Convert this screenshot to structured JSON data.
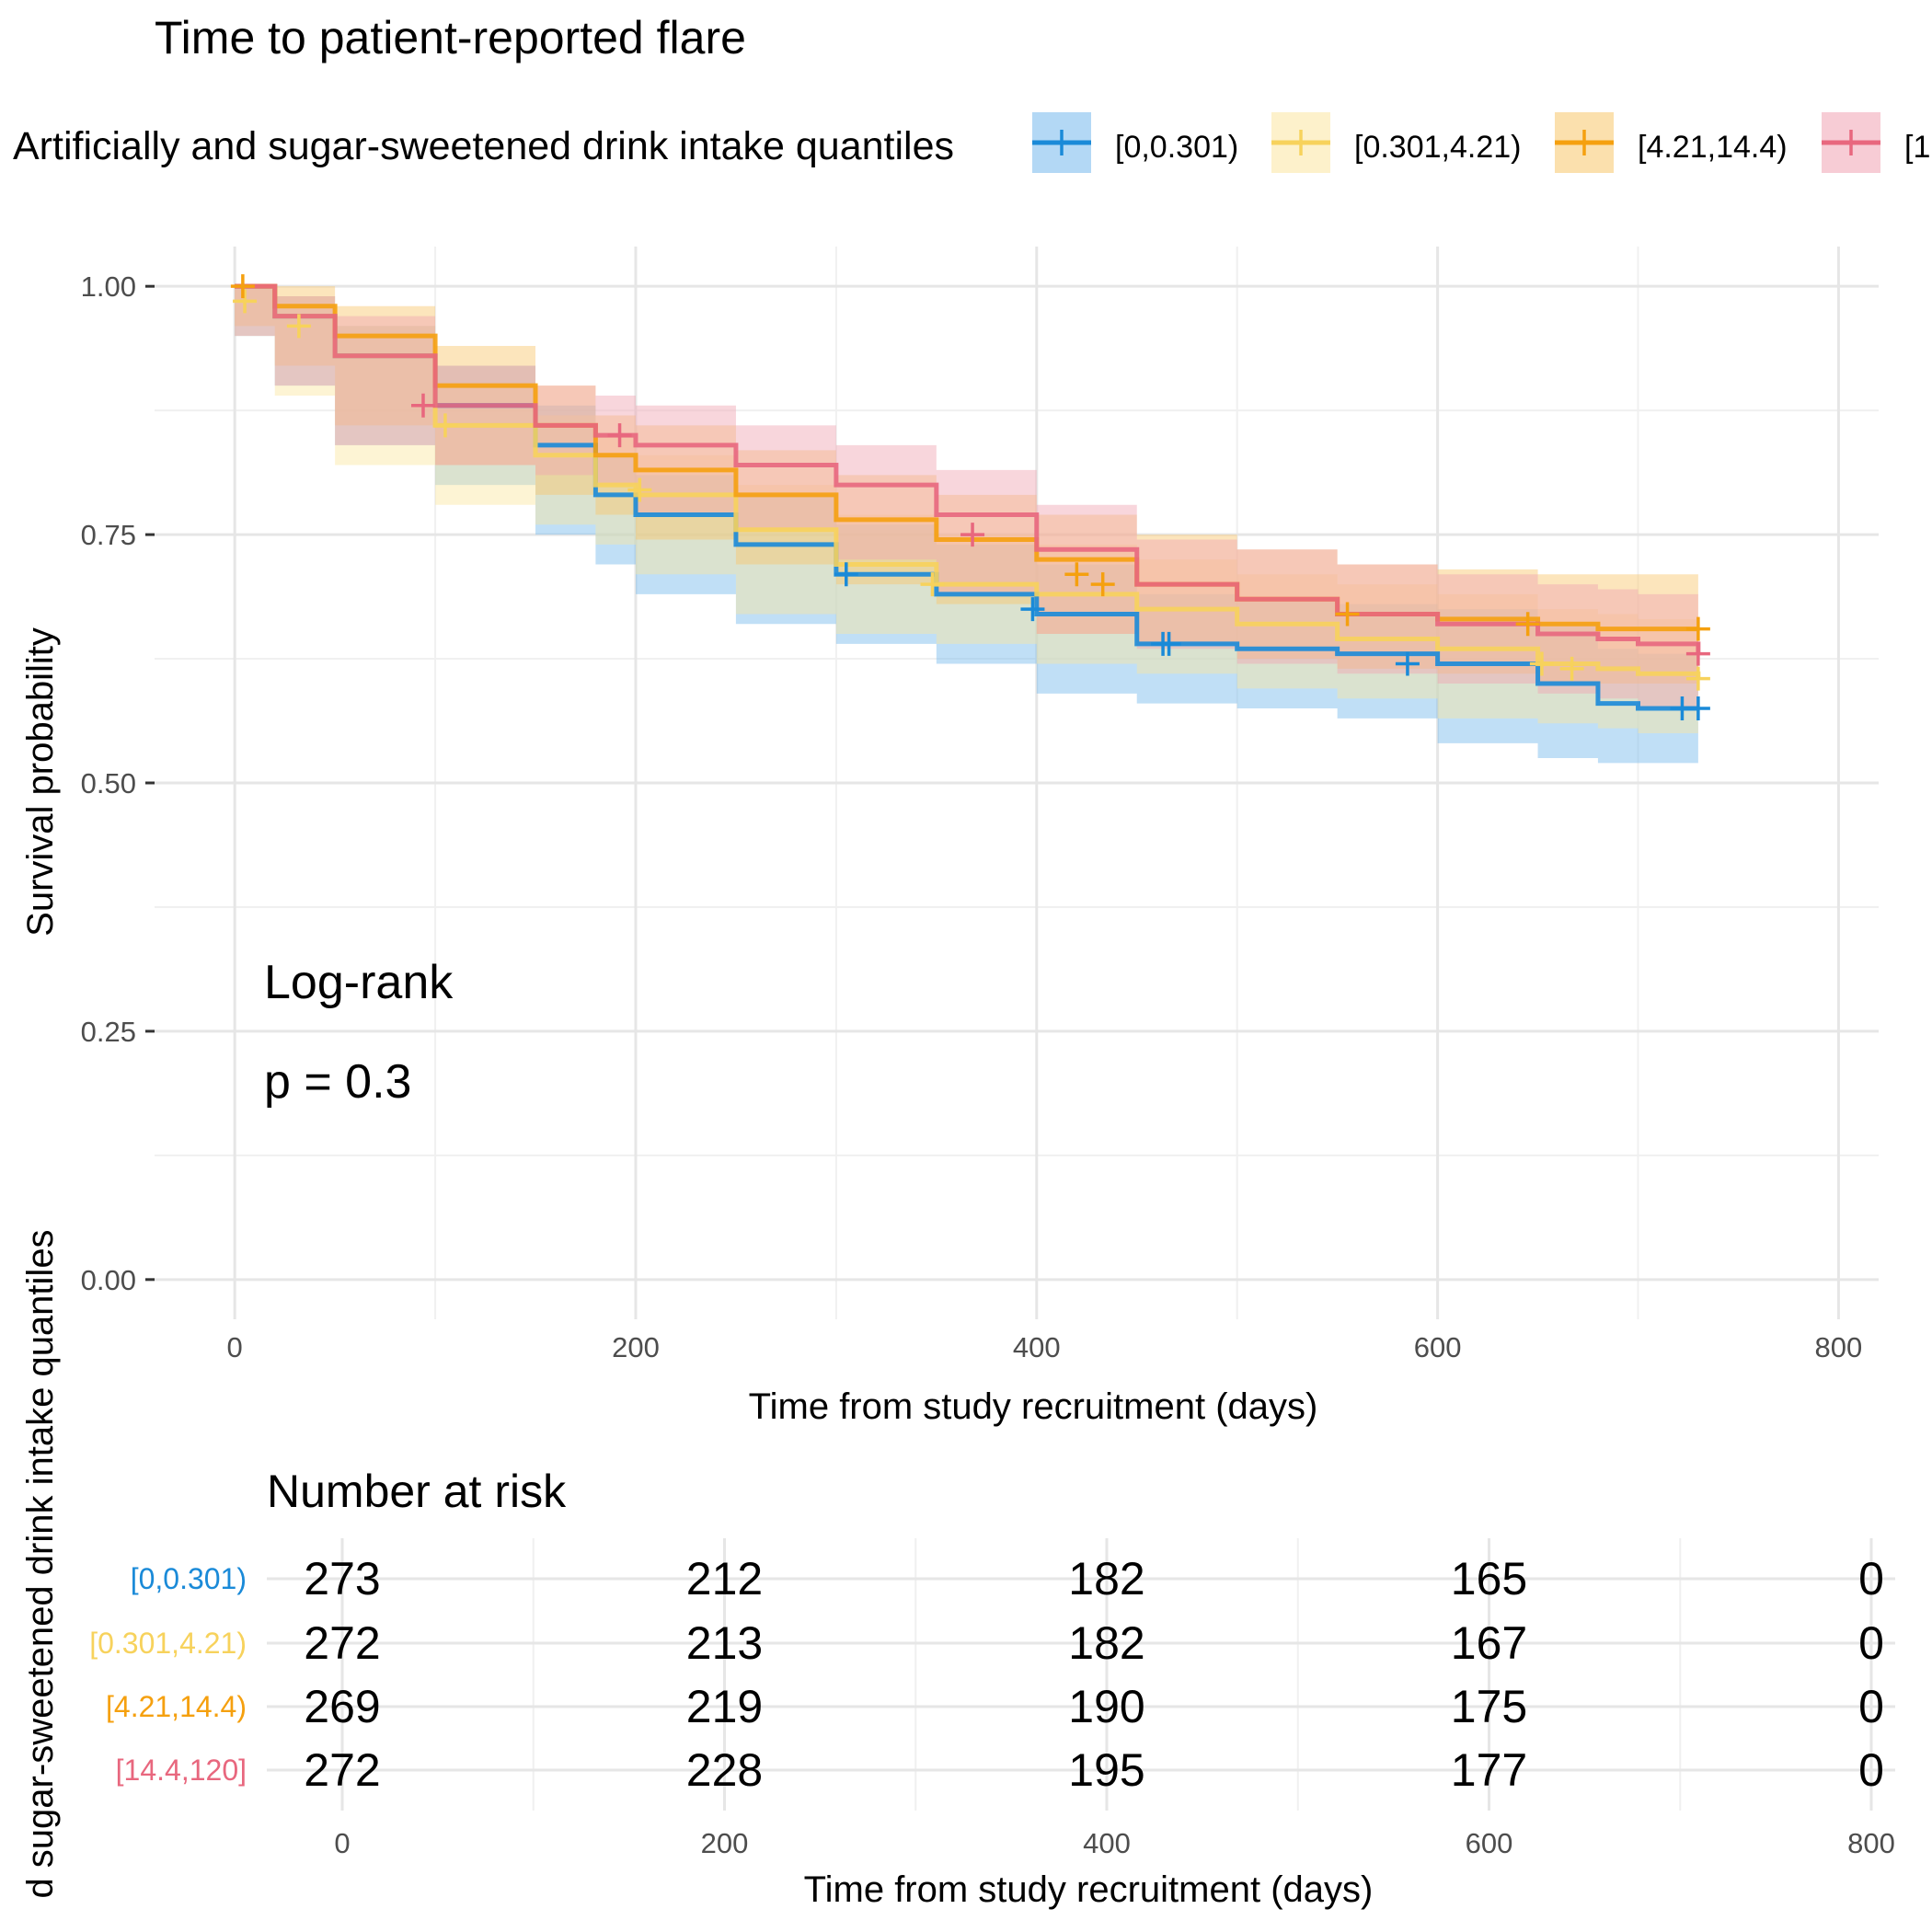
{
  "chart_data": [
    {
      "type": "line",
      "subtype": "kaplan-meier",
      "title": "Time to patient-reported flare",
      "legend": {
        "title": "Artificially and sugar-sweetened drink intake quantiles",
        "placement": "top",
        "items": [
          "[0,0.301)",
          "[0.301,4.21)",
          "[4.21,14.4)",
          "[1"
        ]
      },
      "xlabel": "Time from study recruitment (days)",
      "ylabel": "Survival probability",
      "xlim": [
        -40,
        820
      ],
      "ylim": [
        -0.04,
        1.04
      ],
      "x_ticks": [
        0,
        200,
        400,
        600,
        800
      ],
      "x_tick_labels": [
        "0",
        "200",
        "400",
        "600",
        "800"
      ],
      "y_ticks": [
        0,
        0.25,
        0.5,
        0.75,
        1.0
      ],
      "y_tick_labels": [
        "0.00",
        "0.25",
        "0.50",
        "0.75",
        "1.00"
      ],
      "grid": true,
      "annotation": [
        "Log-rank",
        "p = 0.3"
      ],
      "series": [
        {
          "name": "[0,0.301)",
          "color": "#1a8ad8",
          "band_color": "#74b8ec",
          "x": [
            0,
            20,
            50,
            100,
            150,
            180,
            200,
            250,
            300,
            350,
            400,
            450,
            500,
            550,
            600,
            650,
            680,
            700,
            730
          ],
          "y": [
            1.0,
            0.97,
            0.93,
            0.88,
            0.84,
            0.79,
            0.77,
            0.74,
            0.71,
            0.69,
            0.67,
            0.64,
            0.635,
            0.63,
            0.62,
            0.6,
            0.58,
            0.575,
            0.575
          ],
          "lower": [
            1.0,
            0.95,
            0.9,
            0.84,
            0.8,
            0.75,
            0.72,
            0.69,
            0.66,
            0.64,
            0.62,
            0.59,
            0.58,
            0.575,
            0.565,
            0.54,
            0.525,
            0.52,
            0.52
          ],
          "upper": [
            1.0,
            0.99,
            0.96,
            0.92,
            0.88,
            0.83,
            0.81,
            0.79,
            0.76,
            0.74,
            0.72,
            0.69,
            0.685,
            0.68,
            0.675,
            0.66,
            0.635,
            0.63,
            0.63
          ],
          "censor_x": [
            305,
            398,
            463,
            466,
            585,
            722,
            730
          ],
          "censor_y": [
            0.71,
            0.675,
            0.64,
            0.64,
            0.62,
            0.575,
            0.575
          ]
        },
        {
          "name": "[0.301,4.21)",
          "color": "#f7d25c",
          "band_color": "#fbe6a0",
          "x": [
            0,
            20,
            50,
            100,
            150,
            180,
            200,
            250,
            300,
            350,
            400,
            450,
            500,
            550,
            600,
            650,
            680,
            700,
            730
          ],
          "y": [
            1.0,
            0.97,
            0.93,
            0.86,
            0.83,
            0.8,
            0.79,
            0.755,
            0.72,
            0.7,
            0.69,
            0.675,
            0.66,
            0.645,
            0.635,
            0.62,
            0.615,
            0.61,
            0.605
          ],
          "lower": [
            1.0,
            0.95,
            0.89,
            0.82,
            0.78,
            0.76,
            0.74,
            0.71,
            0.67,
            0.65,
            0.64,
            0.62,
            0.61,
            0.595,
            0.585,
            0.565,
            0.56,
            0.555,
            0.55
          ],
          "upper": [
            1.0,
            0.99,
            0.96,
            0.9,
            0.87,
            0.85,
            0.83,
            0.8,
            0.77,
            0.75,
            0.74,
            0.725,
            0.71,
            0.7,
            0.69,
            0.675,
            0.67,
            0.665,
            0.66
          ],
          "censor_x": [
            5,
            32,
            105,
            202,
            348,
            652,
            667,
            730
          ],
          "censor_y": [
            0.985,
            0.96,
            0.86,
            0.795,
            0.7,
            0.62,
            0.615,
            0.605
          ]
        },
        {
          "name": "[4.21,14.4)",
          "color": "#f5a00f",
          "band_color": "#f8c66a",
          "x": [
            0,
            20,
            50,
            100,
            150,
            180,
            200,
            250,
            300,
            350,
            400,
            450,
            500,
            550,
            600,
            650,
            680,
            700,
            730
          ],
          "y": [
            1.0,
            0.98,
            0.95,
            0.9,
            0.86,
            0.83,
            0.815,
            0.79,
            0.765,
            0.745,
            0.725,
            0.7,
            0.685,
            0.67,
            0.665,
            0.66,
            0.655,
            0.655,
            0.655
          ],
          "lower": [
            1.0,
            0.96,
            0.92,
            0.86,
            0.82,
            0.79,
            0.77,
            0.745,
            0.72,
            0.7,
            0.68,
            0.65,
            0.64,
            0.625,
            0.615,
            0.61,
            0.6,
            0.6,
            0.6
          ],
          "upper": [
            1.0,
            1.0,
            0.98,
            0.94,
            0.9,
            0.87,
            0.86,
            0.835,
            0.81,
            0.79,
            0.77,
            0.75,
            0.735,
            0.72,
            0.715,
            0.71,
            0.71,
            0.71,
            0.71
          ],
          "censor_x": [
            4,
            420,
            433,
            555,
            645,
            730
          ],
          "censor_y": [
            1.0,
            0.71,
            0.7,
            0.67,
            0.66,
            0.655
          ]
        },
        {
          "name": "[14.4,120]",
          "color": "#e8677e",
          "band_color": "#f0a3b2",
          "x": [
            0,
            20,
            50,
            100,
            150,
            180,
            200,
            250,
            300,
            350,
            400,
            450,
            500,
            550,
            600,
            650,
            680,
            700,
            730
          ],
          "y": [
            1.0,
            0.97,
            0.93,
            0.88,
            0.86,
            0.85,
            0.84,
            0.82,
            0.8,
            0.77,
            0.735,
            0.7,
            0.685,
            0.67,
            0.66,
            0.65,
            0.645,
            0.64,
            0.63
          ],
          "lower": [
            1.0,
            0.95,
            0.9,
            0.84,
            0.82,
            0.81,
            0.8,
            0.77,
            0.755,
            0.725,
            0.69,
            0.65,
            0.635,
            0.62,
            0.61,
            0.6,
            0.59,
            0.585,
            0.575
          ],
          "upper": [
            1.0,
            0.99,
            0.97,
            0.92,
            0.9,
            0.89,
            0.88,
            0.86,
            0.84,
            0.815,
            0.78,
            0.745,
            0.735,
            0.72,
            0.71,
            0.7,
            0.695,
            0.69,
            0.685
          ],
          "censor_x": [
            94,
            192,
            368,
            730
          ],
          "censor_y": [
            0.88,
            0.85,
            0.75,
            0.63
          ]
        }
      ]
    },
    {
      "type": "table",
      "title": "Number at risk",
      "xlabel": "Time from study recruitment (days)",
      "ylabel": "d sugar-sweetened drink intake quantiles",
      "x_ticks": [
        0,
        200,
        400,
        600,
        800
      ],
      "x_tick_labels": [
        "0",
        "200",
        "400",
        "600",
        "800"
      ],
      "rows": [
        {
          "label": "[0,0.301)",
          "color": "#1a8ad8",
          "values": [
            "273",
            "212",
            "182",
            "165",
            "0"
          ]
        },
        {
          "label": "[0.301,4.21)",
          "color": "#f7d25c",
          "values": [
            "272",
            "213",
            "182",
            "167",
            "0"
          ]
        },
        {
          "label": "[4.21,14.4)",
          "color": "#f5a00f",
          "values": [
            "269",
            "219",
            "190",
            "175",
            "0"
          ]
        },
        {
          "label": "[14.4,120]",
          "color": "#e8677e",
          "values": [
            "272",
            "228",
            "195",
            "177",
            "0"
          ]
        }
      ]
    }
  ]
}
